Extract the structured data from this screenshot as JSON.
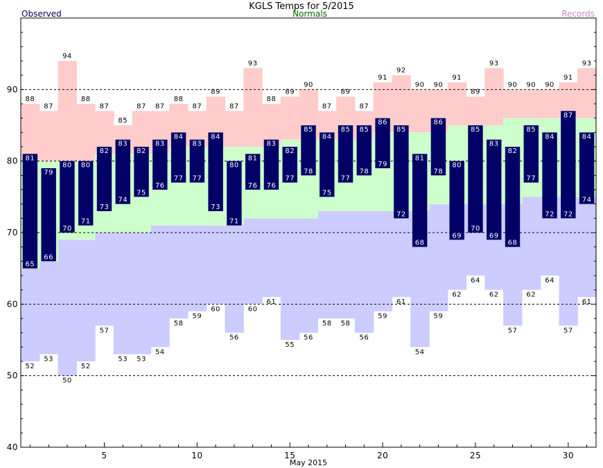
{
  "chart_data": {
    "type": "bar",
    "title": "KGLS Temps for 5/2015",
    "xlabel": "May 2015",
    "ylabel": "",
    "legend": [
      {
        "name": "Observed",
        "color": "#000066",
        "placement": "top-left"
      },
      {
        "name": "Normals",
        "color": "#006600",
        "placement": "top-center"
      },
      {
        "name": "Records",
        "color": "#cc88cc",
        "placement": "top-right"
      }
    ],
    "xlim": [
      0.5,
      31.5
    ],
    "ylim": [
      40,
      100
    ],
    "x_ticks": [
      5,
      10,
      15,
      20,
      25,
      30
    ],
    "y_ticks": [
      40,
      50,
      60,
      70,
      80,
      90
    ],
    "dashed_gridlines": [
      50,
      60,
      70,
      80,
      90
    ],
    "days": [
      1,
      2,
      3,
      4,
      5,
      6,
      7,
      8,
      9,
      10,
      11,
      12,
      13,
      14,
      15,
      16,
      17,
      18,
      19,
      20,
      21,
      22,
      23,
      24,
      25,
      26,
      27,
      28,
      29,
      30,
      31
    ],
    "series": [
      {
        "name": "Observed",
        "color": "#000066",
        "high": [
          81,
          79,
          80,
          80,
          82,
          83,
          82,
          83,
          84,
          83,
          84,
          80,
          81,
          83,
          82,
          85,
          84,
          85,
          85,
          86,
          85,
          81,
          86,
          80,
          85,
          83,
          82,
          85,
          84,
          87,
          84
        ],
        "low": [
          65,
          66,
          70,
          71,
          73,
          74,
          75,
          76,
          77,
          77,
          73,
          71,
          76,
          76,
          77,
          78,
          75,
          77,
          78,
          79,
          72,
          68,
          78,
          69,
          70,
          69,
          68,
          77,
          72,
          72,
          74
        ]
      },
      {
        "name": "Records",
        "color": "#ffcccc",
        "high": [
          88,
          87,
          94,
          88,
          87,
          85,
          87,
          87,
          88,
          87,
          89,
          87,
          93,
          88,
          89,
          90,
          87,
          89,
          87,
          91,
          92,
          90,
          90,
          91,
          89,
          93,
          90,
          90,
          90,
          91,
          93
        ],
        "low": [
          52,
          53,
          50,
          52,
          57,
          53,
          53,
          54,
          58,
          59,
          60,
          56,
          60,
          61,
          55,
          56,
          58,
          58,
          56,
          59,
          61,
          54,
          59,
          62,
          64,
          62,
          57,
          62,
          64,
          57,
          61
        ]
      },
      {
        "name": "Normals",
        "color": "#ccffcc",
        "high": [
          80,
          80,
          80,
          80,
          81,
          81,
          81,
          81,
          82,
          82,
          82,
          82,
          82,
          82,
          83,
          83,
          83,
          83,
          83,
          84,
          84,
          84,
          84,
          85,
          85,
          85,
          86,
          86,
          86,
          86,
          86
        ],
        "low": [
          65,
          66,
          69,
          69,
          70,
          70,
          70,
          71,
          71,
          71,
          71,
          71,
          72,
          72,
          72,
          72,
          73,
          73,
          73,
          73,
          73,
          73,
          74,
          74,
          74,
          74,
          74,
          75,
          75,
          75,
          75
        ]
      }
    ],
    "colors": {
      "observed": "#000066",
      "normals": "#ccffcc",
      "records_high": "#ffcccc",
      "records_low": "#ccccff",
      "title": "#000000"
    }
  }
}
